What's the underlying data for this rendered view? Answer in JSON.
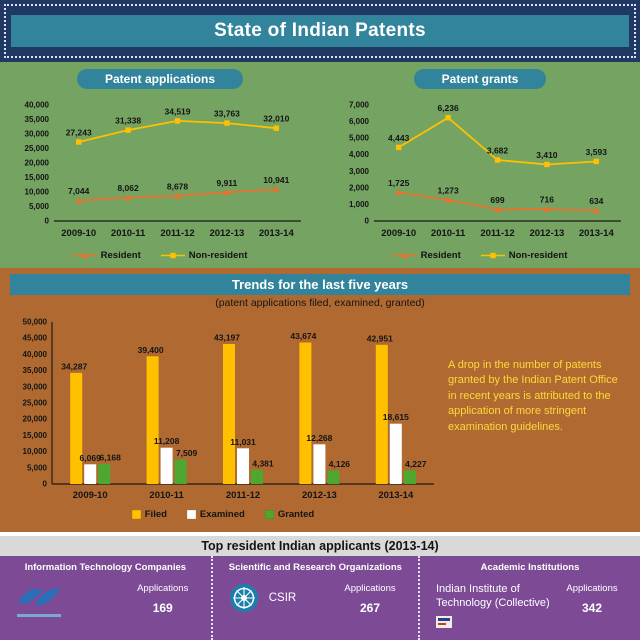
{
  "header": {
    "title": "State of Indian Patents"
  },
  "trends": {
    "annotation": "A drop in the number of patents granted by the Indian Patent Office in recent years is attributed to the application of more stringent examination guidelines."
  },
  "bottom": {
    "title": "Top resident Indian applicants (2013-14)",
    "columns": [
      {
        "header": "Information Technology Companies",
        "org": "",
        "applications_label": "Applications",
        "value": "169"
      },
      {
        "header": "Scientific and Research Organizations",
        "org": "CSIR",
        "applications_label": "Applications",
        "value": "267"
      },
      {
        "header": "Academic Institutions",
        "org": "Indian Institute of Technology (Collective)",
        "applications_label": "Applications",
        "value": "342"
      }
    ]
  },
  "colors": {
    "navy": "#1f3864",
    "teal": "#31849b",
    "green_bg": "#74a362",
    "brown_bg": "#b06a31",
    "purple_bg": "#7d4b96",
    "resident": "#e8712e",
    "non_resident": "#ffc000",
    "filed": "#ffc000",
    "examined": "#ffffff",
    "granted": "#4ea72e",
    "annotation_text": "#ffd83b"
  },
  "chart_data": [
    {
      "id": "applications",
      "type": "line",
      "title": "Patent applications",
      "categories": [
        "2009-10",
        "2010-11",
        "2011-12",
        "2012-13",
        "2013-14"
      ],
      "series": [
        {
          "name": "Resident",
          "color": "#e8712e",
          "marker": "triangle",
          "values": [
            7044,
            8062,
            8678,
            9911,
            10941
          ]
        },
        {
          "name": "Non-resident",
          "color": "#ffc000",
          "marker": "square",
          "values": [
            27243,
            31338,
            34519,
            33763,
            32010
          ]
        }
      ],
      "ylim": [
        0,
        40000
      ],
      "ystep": 5000,
      "grid": false,
      "legend_position": "bottom"
    },
    {
      "id": "grants",
      "type": "line",
      "title": "Patent grants",
      "categories": [
        "2009-10",
        "2010-11",
        "2011-12",
        "2012-13",
        "2013-14"
      ],
      "series": [
        {
          "name": "Resident",
          "color": "#e8712e",
          "marker": "triangle",
          "values": [
            1725,
            1273,
            699,
            716,
            634
          ]
        },
        {
          "name": "Non-resident",
          "color": "#ffc000",
          "marker": "square",
          "values": [
            4443,
            6236,
            3682,
            3410,
            3593
          ]
        }
      ],
      "ylim": [
        0,
        7000
      ],
      "ystep": 1000,
      "grid": false,
      "legend_position": "bottom"
    },
    {
      "id": "trends",
      "type": "bar",
      "title": "Trends for the last five years",
      "subtitle": "(patent applications filed, examined, granted)",
      "categories": [
        "2009-10",
        "2010-11",
        "2011-12",
        "2012-13",
        "2013-14"
      ],
      "series": [
        {
          "name": "Filed",
          "color": "#ffc000",
          "values": [
            34287,
            39400,
            43197,
            43674,
            42951
          ]
        },
        {
          "name": "Examined",
          "color": "#ffffff",
          "values": [
            6069,
            11208,
            11031,
            12268,
            18615
          ]
        },
        {
          "name": "Granted",
          "color": "#4ea72e",
          "values": [
            6168,
            7509,
            4381,
            4126,
            4227
          ]
        }
      ],
      "ylim": [
        0,
        50000
      ],
      "ystep": 5000,
      "grid": false,
      "legend_position": "bottom"
    }
  ]
}
